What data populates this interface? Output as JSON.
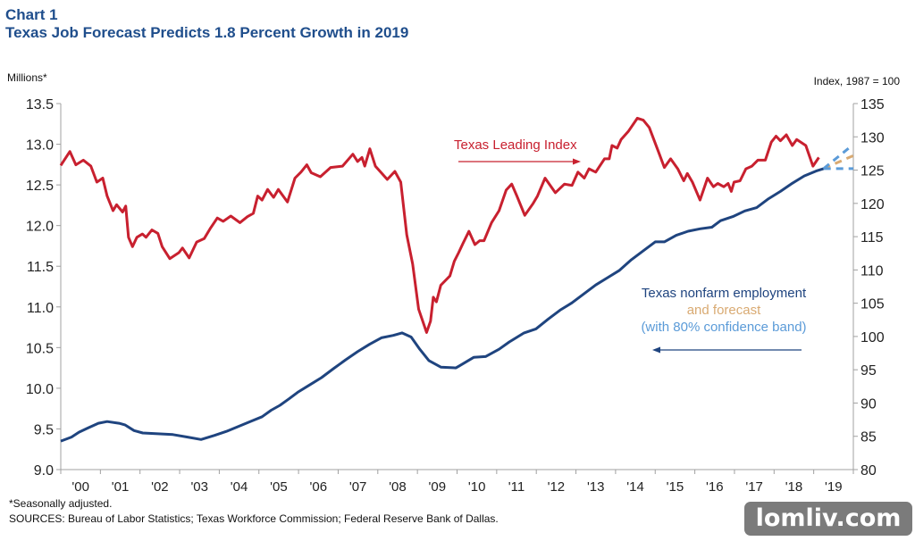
{
  "header": {
    "chart_number": "Chart 1",
    "title": "Texas Job Forecast Predicts 1.8 Percent Growth in 2019"
  },
  "footer": {
    "footnote": "*Seasonally adjusted.",
    "sources": "SOURCES: Bureau of Labor Statistics; Texas Workforce Commission; Federal Reserve Bank of Dallas."
  },
  "watermark": "lomliv.com",
  "colors": {
    "leading_index": "#c8202f",
    "employment": "#1f447f",
    "forecast": "#d9aa72",
    "confidence_band": "#5b9bd8",
    "title": "#1f4e8c",
    "axis": "#a0a0a0"
  },
  "chart_data": {
    "type": "line",
    "title": "Texas Job Forecast Predicts 1.8 Percent Growth in 2019",
    "xlim": [
      2000,
      2020
    ],
    "x_tick_labels": [
      "'00",
      "'01",
      "'02",
      "'03",
      "'04",
      "'05",
      "'06",
      "'07",
      "'08",
      "'09",
      "'10",
      "'11",
      "'12",
      "'13",
      "'14",
      "'15",
      "'16",
      "'17",
      "'18",
      "'19"
    ],
    "y_left": {
      "label": "Millions*",
      "range": [
        9.0,
        13.5
      ],
      "ticks": [
        "9.0",
        "9.5",
        "10.0",
        "10.5",
        "11.0",
        "11.5",
        "12.0",
        "12.5",
        "13.0",
        "13.5"
      ]
    },
    "y_right": {
      "label": "Index, 1987 = 100",
      "range": [
        80,
        135
      ],
      "ticks": [
        "80",
        "85",
        "90",
        "95",
        "100",
        "105",
        "110",
        "115",
        "120",
        "125",
        "130",
        "135"
      ]
    },
    "grid": false,
    "annotations": {
      "leading_index": "Texas Leading Index",
      "employment_line1": "Texas nonfarm employment",
      "employment_line2": "and forecast",
      "employment_line3": "(with 80% confidence band)"
    },
    "series": [
      {
        "name": "Texas Leading Index",
        "axis": "right",
        "x": [
          2000.0,
          2000.23,
          2000.38,
          2000.57,
          2000.76,
          2000.91,
          2001.06,
          2001.17,
          2001.32,
          2001.41,
          2001.56,
          2001.64,
          2001.71,
          2001.81,
          2001.92,
          2002.06,
          2002.15,
          2002.3,
          2002.45,
          2002.56,
          2002.75,
          2002.98,
          2003.07,
          2003.24,
          2003.43,
          2003.62,
          2003.77,
          2003.95,
          2004.1,
          2004.29,
          2004.52,
          2004.71,
          2004.86,
          2004.97,
          2005.08,
          2005.22,
          2005.37,
          2005.49,
          2005.72,
          2005.91,
          2006.06,
          2006.21,
          2006.32,
          2006.55,
          2006.81,
          2007.11,
          2007.37,
          2007.49,
          2007.6,
          2007.67,
          2007.8,
          2007.94,
          2008.24,
          2008.43,
          2008.58,
          2008.73,
          2008.88,
          2009.03,
          2009.23,
          2009.33,
          2009.4,
          2009.48,
          2009.59,
          2009.82,
          2009.93,
          2010.04,
          2010.15,
          2010.3,
          2010.45,
          2010.57,
          2010.68,
          2010.87,
          2011.06,
          2011.24,
          2011.38,
          2011.51,
          2011.71,
          2011.92,
          2012.03,
          2012.22,
          2012.48,
          2012.71,
          2012.9,
          2013.05,
          2013.21,
          2013.33,
          2013.5,
          2013.72,
          2013.84,
          2013.91,
          2014.04,
          2014.14,
          2014.32,
          2014.55,
          2014.7,
          2014.85,
          2015.08,
          2015.23,
          2015.39,
          2015.57,
          2015.72,
          2015.81,
          2015.94,
          2016.13,
          2016.32,
          2016.47,
          2016.58,
          2016.73,
          2016.84,
          2016.92,
          2016.99,
          2017.14,
          2017.29,
          2017.44,
          2017.59,
          2017.78,
          2017.93,
          2018.05,
          2018.16,
          2018.31,
          2018.46,
          2018.57,
          2018.8,
          2018.98,
          2019.13
        ],
        "values": [
          125.7,
          127.8,
          125.8,
          126.5,
          125.6,
          123.2,
          123.8,
          121.1,
          118.9,
          119.8,
          118.7,
          119.6,
          114.9,
          113.5,
          114.9,
          115.4,
          114.9,
          116.0,
          115.5,
          113.5,
          111.7,
          112.6,
          113.3,
          111.8,
          114.2,
          114.7,
          116.2,
          117.8,
          117.3,
          118.1,
          117.1,
          118.0,
          118.5,
          121.1,
          120.5,
          122.1,
          120.9,
          122.1,
          120.2,
          123.8,
          124.7,
          125.8,
          124.6,
          124.0,
          125.4,
          125.6,
          127.4,
          126.3,
          126.9,
          125.6,
          128.2,
          125.6,
          123.6,
          124.8,
          123.2,
          115.3,
          110.9,
          104.1,
          100.6,
          102.3,
          105.9,
          105.2,
          107.7,
          109.1,
          111.3,
          112.6,
          114.0,
          115.8,
          113.8,
          114.4,
          114.4,
          117.1,
          118.9,
          122.0,
          122.9,
          121.1,
          118.2,
          120.0,
          121.1,
          123.8,
          121.6,
          122.9,
          122.7,
          124.7,
          123.8,
          125.2,
          124.7,
          126.7,
          126.7,
          128.7,
          128.3,
          129.6,
          130.8,
          132.8,
          132.5,
          131.4,
          127.8,
          125.4,
          126.7,
          125.2,
          123.4,
          124.5,
          123.2,
          120.5,
          123.8,
          122.5,
          123.0,
          122.5,
          123.0,
          121.8,
          123.2,
          123.4,
          125.2,
          125.6,
          126.5,
          126.5,
          129.2,
          130.1,
          129.4,
          130.3,
          128.7,
          129.6,
          128.7,
          125.6,
          126.9
        ]
      },
      {
        "name": "Texas nonfarm employment",
        "axis": "left",
        "x": [
          2000.0,
          2000.27,
          2000.46,
          2000.68,
          2000.95,
          2001.17,
          2001.47,
          2001.62,
          2001.85,
          2002.07,
          2002.45,
          2002.83,
          2003.2,
          2003.54,
          2003.88,
          2004.18,
          2004.48,
          2004.78,
          2005.08,
          2005.31,
          2005.53,
          2005.76,
          2005.98,
          2006.28,
          2006.58,
          2006.88,
          2007.19,
          2007.49,
          2007.79,
          2008.09,
          2008.39,
          2008.61,
          2008.84,
          2009.06,
          2009.29,
          2009.59,
          2009.97,
          2010.04,
          2010.42,
          2010.72,
          2011.06,
          2011.32,
          2011.69,
          2011.99,
          2012.3,
          2012.6,
          2012.9,
          2013.2,
          2013.5,
          2013.8,
          2014.1,
          2014.4,
          2014.7,
          2015.0,
          2015.23,
          2015.53,
          2015.83,
          2016.13,
          2016.43,
          2016.65,
          2016.96,
          2017.26,
          2017.56,
          2017.86,
          2018.16,
          2018.46,
          2018.76,
          2019.06,
          2019.25
        ],
        "values": [
          9.35,
          9.4,
          9.46,
          9.51,
          9.57,
          9.59,
          9.57,
          9.55,
          9.48,
          9.45,
          9.44,
          9.43,
          9.4,
          9.37,
          9.42,
          9.47,
          9.53,
          9.59,
          9.65,
          9.73,
          9.79,
          9.87,
          9.95,
          10.04,
          10.13,
          10.24,
          10.35,
          10.45,
          10.54,
          10.62,
          10.65,
          10.68,
          10.63,
          10.48,
          10.34,
          10.26,
          10.25,
          10.27,
          10.38,
          10.39,
          10.48,
          10.57,
          10.68,
          10.73,
          10.85,
          10.96,
          11.05,
          11.16,
          11.27,
          11.36,
          11.45,
          11.58,
          11.69,
          11.8,
          11.8,
          11.88,
          11.93,
          11.96,
          11.98,
          12.06,
          12.11,
          12.18,
          12.22,
          12.33,
          12.42,
          12.52,
          12.61,
          12.67,
          12.7
        ]
      },
      {
        "name": "forecast",
        "axis": "left",
        "style": "dashed",
        "x": [
          2019.25,
          2020.0
        ],
        "values": [
          12.7,
          12.86
        ]
      },
      {
        "name": "80% confidence band upper",
        "axis": "left",
        "style": "dashed",
        "x": [
          2019.25,
          2019.93
        ],
        "values": [
          12.7,
          12.97
        ]
      },
      {
        "name": "80% confidence band lower",
        "axis": "left",
        "style": "dashed",
        "x": [
          2019.25,
          2020.0
        ],
        "values": [
          12.7,
          12.7
        ]
      }
    ]
  }
}
